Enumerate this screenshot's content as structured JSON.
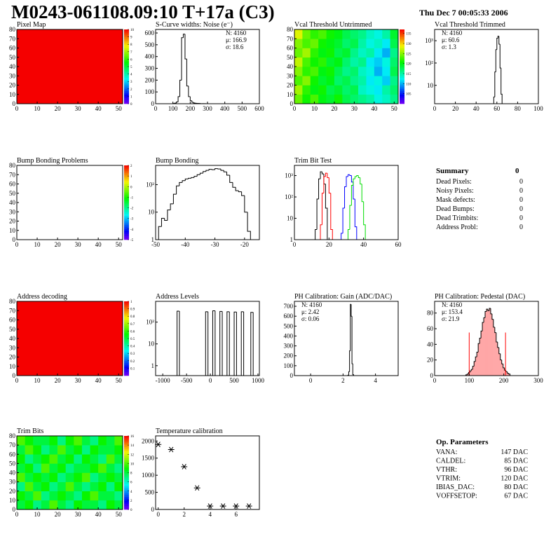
{
  "header": {
    "title": "M0243-061108.09:10 T+17a (C3)",
    "date": "Thu Dec  7 00:05:33 2006"
  },
  "chart_data": [
    {
      "type": "heatmap",
      "title": "Pixel Map",
      "xlim": [
        0,
        52
      ],
      "ylim": [
        0,
        80
      ],
      "xticks": [
        0,
        10,
        20,
        30,
        40,
        50
      ],
      "yticks": [
        0,
        10,
        20,
        30,
        40,
        50,
        60,
        70,
        80
      ],
      "zlim": [
        0,
        10
      ],
      "zticks": [
        0,
        1,
        2,
        3,
        4,
        5,
        6,
        7,
        8,
        9,
        10
      ],
      "values": [
        [
          10
        ]
      ]
    },
    {
      "type": "histogram",
      "title": "S-Curve widths: Noise (e⁻)",
      "xlim": [
        0,
        600
      ],
      "ylim": [
        0,
        630
      ],
      "xticks": [
        0,
        100,
        200,
        300,
        400,
        500,
        600
      ],
      "yticks": [
        0,
        100,
        200,
        300,
        400,
        500,
        600
      ],
      "color": "#000000",
      "bins": [
        100,
        110,
        120,
        130,
        140,
        150,
        160,
        170,
        180,
        190,
        200,
        210,
        220,
        230,
        240,
        250,
        260,
        270,
        280,
        290
      ],
      "values": [
        2,
        5,
        15,
        60,
        200,
        560,
        590,
        380,
        150,
        60,
        25,
        12,
        6,
        4,
        3,
        2,
        1,
        1,
        1
      ],
      "stats": [
        "N: 4160",
        "μ: 166.9",
        "σ: 18.6"
      ],
      "stats_corner": "top-right"
    },
    {
      "type": "heatmap",
      "title": "Vcal Threshold Untrimmed",
      "xlim": [
        0,
        52
      ],
      "ylim": [
        0,
        80
      ],
      "xticks": [
        0,
        10,
        20,
        30,
        40,
        50
      ],
      "yticks": [
        0,
        10,
        20,
        30,
        40,
        50,
        60,
        70,
        80
      ],
      "zlim": [
        100,
        137
      ],
      "zticks": [
        105,
        110,
        115,
        120,
        125,
        130,
        135
      ],
      "values": [
        [
          124,
          121,
          123,
          120,
          119,
          121,
          118,
          117,
          116,
          115,
          113,
          114,
          116
        ],
        [
          126,
          122,
          120,
          121,
          118,
          119,
          117,
          118,
          114,
          113,
          112,
          115,
          117
        ],
        [
          123,
          125,
          121,
          119,
          120,
          117,
          118,
          116,
          115,
          112,
          113,
          111,
          116
        ],
        [
          125,
          122,
          123,
          120,
          121,
          118,
          116,
          117,
          114,
          113,
          110,
          112,
          118
        ],
        [
          127,
          123,
          121,
          122,
          119,
          120,
          117,
          115,
          116,
          112,
          111,
          113,
          117
        ],
        [
          124,
          126,
          122,
          120,
          121,
          118,
          119,
          116,
          114,
          115,
          112,
          110,
          116
        ],
        [
          125,
          123,
          124,
          121,
          120,
          119,
          117,
          118,
          115,
          113,
          114,
          112,
          118
        ],
        [
          128,
          124,
          122,
          123,
          121,
          120,
          118,
          117,
          116,
          114,
          113,
          115,
          119
        ]
      ]
    },
    {
      "type": "histogram",
      "title": "Vcal Threshold Trimmed",
      "logy": true,
      "xlim": [
        0,
        100
      ],
      "ylim": [
        1.5,
        3200
      ],
      "xticks": [
        0,
        20,
        40,
        60,
        80,
        100
      ],
      "yticks": [
        10,
        {
          "value": 100,
          "label": "10²"
        },
        {
          "value": 1000,
          "label": "10³"
        }
      ],
      "color": "#000000",
      "bins": [
        57,
        58,
        59,
        60,
        61,
        62,
        63,
        64,
        65
      ],
      "values": [
        3,
        40,
        400,
        1300,
        1600,
        700,
        60,
        4
      ],
      "stats": [
        "N: 4160",
        "μ: 60.6",
        "σ:  1.3"
      ],
      "stats_corner": "top-left"
    },
    {
      "type": "heatmap",
      "title": "Bump Bonding Problems",
      "xlim": [
        0,
        52
      ],
      "ylim": [
        0,
        80
      ],
      "xticks": [
        0,
        10,
        20,
        30,
        40,
        50
      ],
      "yticks": [
        0,
        10,
        20,
        30,
        40,
        50,
        60,
        70,
        80
      ],
      "zlim": [
        -5,
        2
      ],
      "zticks": [
        -5,
        -4,
        -3,
        -2,
        -1,
        0,
        1,
        2
      ],
      "values": []
    },
    {
      "type": "histogram",
      "title": "Bump Bonding",
      "logy": true,
      "xlim": [
        -50,
        -15
      ],
      "ylim": [
        1,
        500
      ],
      "xticks": [
        -50,
        -40,
        -30,
        -20
      ],
      "yticks": [
        1,
        10,
        {
          "value": 100,
          "label": "10²"
        }
      ],
      "color": "#000000",
      "bins": [
        -49,
        -48,
        -47,
        -46,
        -45,
        -44,
        -43,
        -42,
        -41,
        -40,
        -39,
        -38,
        -37,
        -36,
        -35,
        -34,
        -33,
        -32,
        -31,
        -30,
        -29,
        -28,
        -27,
        -26,
        -25,
        -24,
        -23,
        -22,
        -21,
        -20,
        -19,
        -18
      ],
      "values": [
        3,
        6,
        5,
        12,
        20,
        45,
        90,
        120,
        140,
        160,
        170,
        180,
        200,
        230,
        260,
        300,
        330,
        360,
        350,
        380,
        370,
        330,
        290,
        220,
        120,
        80,
        60,
        55,
        40,
        10,
        2
      ]
    },
    {
      "type": "histogram",
      "title": "Trim Bit Test",
      "logy": true,
      "xlim": [
        0,
        60
      ],
      "ylim": [
        1,
        3000
      ],
      "xticks": [
        0,
        20,
        40,
        60
      ],
      "yticks": [
        1,
        10,
        {
          "value": 100,
          "label": "10²"
        },
        {
          "value": 1000,
          "label": "10³"
        }
      ],
      "series": [
        {
          "color": "#000000",
          "bins": [
            12,
            13,
            14,
            15,
            16,
            17,
            18,
            19
          ],
          "values": [
            3,
            80,
            700,
            1500,
            1200,
            400,
            30
          ]
        },
        {
          "color": "#ff0000",
          "bins": [
            15,
            16,
            17,
            18,
            19,
            20,
            21,
            22
          ],
          "values": [
            5,
            150,
            900,
            1300,
            800,
            150,
            3
          ]
        },
        {
          "color": "#0000ff",
          "bins": [
            27,
            28,
            29,
            30,
            31,
            32,
            33,
            34,
            35,
            36
          ],
          "values": [
            2,
            30,
            300,
            900,
            1100,
            1000,
            500,
            80,
            4
          ]
        },
        {
          "color": "#00dd00",
          "bins": [
            31,
            32,
            33,
            34,
            35,
            36,
            37,
            38,
            39,
            40,
            41
          ],
          "values": [
            3,
            40,
            350,
            700,
            900,
            1000,
            800,
            400,
            60,
            5
          ]
        }
      ]
    },
    {
      "type": "heatmap",
      "title": "Address decoding",
      "xlim": [
        0,
        52
      ],
      "ylim": [
        0,
        80
      ],
      "xticks": [
        0,
        10,
        20,
        30,
        40,
        50
      ],
      "yticks": [
        0,
        10,
        20,
        30,
        40,
        50,
        60,
        70,
        80
      ],
      "zlim": [
        0,
        1
      ],
      "zticks": [
        0.1,
        0.2,
        0.3,
        0.4,
        0.5,
        0.6,
        0.7,
        0.8,
        0.9,
        1
      ],
      "values": [
        [
          1
        ]
      ]
    },
    {
      "type": "histogram",
      "title": "Address Levels",
      "logy": true,
      "xlim": [
        -1150,
        1030
      ],
      "ylim": [
        0.35,
        900
      ],
      "xticks": [
        -1000,
        -500,
        0,
        500,
        1000
      ],
      "yticks": [
        1,
        10,
        {
          "value": 100,
          "label": "10²"
        }
      ],
      "color": "#000000",
      "bins": [
        -1100,
        -1050,
        -1000,
        -950,
        -900,
        -850,
        -800,
        -750,
        -700,
        -650,
        -600,
        -550,
        -500,
        -450,
        -400,
        -350,
        -300,
        -250,
        -200,
        -150,
        -100,
        -50,
        0,
        50,
        100,
        150,
        200,
        250,
        300,
        350,
        400,
        450,
        500,
        550,
        600,
        650,
        700,
        750,
        800,
        850,
        900,
        950,
        1000
      ],
      "values": [
        0,
        0,
        0,
        0,
        0,
        0,
        0,
        0,
        320,
        0,
        0,
        0,
        0,
        0,
        0,
        0,
        0,
        0,
        0,
        0,
        300,
        0,
        0,
        330,
        0,
        0,
        310,
        0,
        0,
        300,
        0,
        0,
        290,
        0,
        0,
        300,
        0,
        0,
        0,
        280,
        0,
        0
      ]
    },
    {
      "type": "histogram",
      "title": "PH Calibration: Gain (ADC/DAC)",
      "xlim": [
        -1,
        5.4
      ],
      "ylim": [
        0,
        750
      ],
      "xticks": [
        0,
        2,
        4
      ],
      "yticks": [
        0,
        100,
        200,
        300,
        400,
        500,
        600,
        700
      ],
      "color": "#000000",
      "bins": [
        2.3,
        2.35,
        2.4,
        2.45,
        2.5,
        2.55,
        2.6,
        2.65
      ],
      "values": [
        4,
        40,
        250,
        720,
        600,
        120,
        10
      ],
      "stats": [
        "N: 4160",
        "μ: 2.42",
        "σ: 0.06"
      ],
      "stats_corner": "top-left"
    },
    {
      "type": "histogram",
      "title": "PH Calibration: Pedestal (DAC)",
      "xlim": [
        0,
        300
      ],
      "ylim": [
        0,
        95
      ],
      "xticks": [
        0,
        100,
        200,
        300
      ],
      "yticks": [
        0,
        20,
        40,
        60,
        80
      ],
      "color": "#000000",
      "fill_color": "#ff0000",
      "bins": [
        90,
        94,
        98,
        102,
        106,
        110,
        114,
        118,
        122,
        126,
        130,
        134,
        138,
        142,
        146,
        150,
        154,
        158,
        162,
        166,
        170,
        174,
        178,
        182,
        186,
        190,
        194,
        198,
        202,
        206,
        210,
        214,
        218
      ],
      "values": [
        1,
        2,
        4,
        6,
        8,
        12,
        18,
        24,
        30,
        41,
        48,
        57,
        68,
        74,
        82,
        85,
        83,
        86,
        79,
        72,
        62,
        55,
        43,
        36,
        28,
        20,
        15,
        10,
        7,
        5,
        3,
        2
      ],
      "fit_range": [
        100,
        205
      ],
      "fit_color": "#ff0000",
      "stats": [
        "N: 4160",
        "μ: 153.4",
        "σ: 21.9"
      ],
      "stats_colors": [
        "#000000",
        "#ff0000",
        "#ff0000"
      ],
      "stats_corner": "top-left"
    },
    {
      "type": "heatmap",
      "title": "Trim Bits",
      "xlim": [
        0,
        52
      ],
      "ylim": [
        0,
        80
      ],
      "xticks": [
        0,
        10,
        20,
        30,
        40,
        50
      ],
      "yticks": [
        0,
        10,
        20,
        30,
        40,
        50,
        60,
        70,
        80
      ],
      "zlim": [
        0,
        16
      ],
      "zticks": [
        0,
        2,
        4,
        6,
        8,
        10,
        12,
        14,
        16
      ],
      "values": [
        [
          8,
          9,
          7,
          8,
          10,
          8,
          7,
          9,
          8,
          8,
          7,
          9,
          8
        ],
        [
          9,
          8,
          10,
          7,
          8,
          9,
          8,
          7,
          9,
          10,
          8,
          8,
          7
        ],
        [
          7,
          10,
          8,
          9,
          7,
          8,
          10,
          8,
          7,
          8,
          9,
          7,
          9
        ],
        [
          10,
          8,
          9,
          8,
          9,
          7,
          8,
          9,
          10,
          7,
          8,
          9,
          8
        ],
        [
          8,
          9,
          7,
          10,
          8,
          9,
          7,
          8,
          8,
          9,
          10,
          8,
          7
        ],
        [
          9,
          7,
          8,
          9,
          10,
          8,
          9,
          7,
          9,
          8,
          7,
          10,
          8
        ],
        [
          8,
          10,
          9,
          7,
          8,
          10,
          8,
          9,
          7,
          9,
          8,
          8,
          9
        ],
        [
          10,
          9,
          8,
          8,
          9,
          7,
          9,
          10,
          8,
          7,
          9,
          8,
          10
        ]
      ]
    },
    {
      "type": "scatter",
      "title": "Temperature calibration",
      "xlim": [
        -0.2,
        7.8
      ],
      "ylim": [
        0,
        2150
      ],
      "xticks": [
        0,
        2,
        4,
        6
      ],
      "yticks": [
        0,
        500,
        1000,
        1500,
        2000
      ],
      "color": "#000000",
      "x": [
        0,
        1,
        2,
        3,
        4,
        5,
        6,
        7
      ],
      "values": [
        1900,
        1750,
        1250,
        630,
        100,
        100,
        100,
        100
      ]
    }
  ],
  "summary": {
    "title": "Summary",
    "total": 0,
    "rows": [
      {
        "label": "Dead Pixels:",
        "value": 0
      },
      {
        "label": "Noisy Pixels:",
        "value": 0
      },
      {
        "label": "Mask defects:",
        "value": 0
      },
      {
        "label": "Dead Bumps:",
        "value": 0
      },
      {
        "label": "Dead Trimbits:",
        "value": 0
      },
      {
        "label": "Address Probl:",
        "value": 0
      }
    ]
  },
  "op_parameters": {
    "title": "Op. Parameters",
    "rows": [
      {
        "label": "VANA:",
        "value": "147 DAC"
      },
      {
        "label": "CALDEL:",
        "value": "85 DAC"
      },
      {
        "label": "VTHR:",
        "value": "96 DAC"
      },
      {
        "label": "VTRIM:",
        "value": "120 DAC"
      },
      {
        "label": "IBIAS_DAC:",
        "value": "80 DAC"
      },
      {
        "label": "VOFFSETOP:",
        "value": "67 DAC"
      }
    ]
  }
}
